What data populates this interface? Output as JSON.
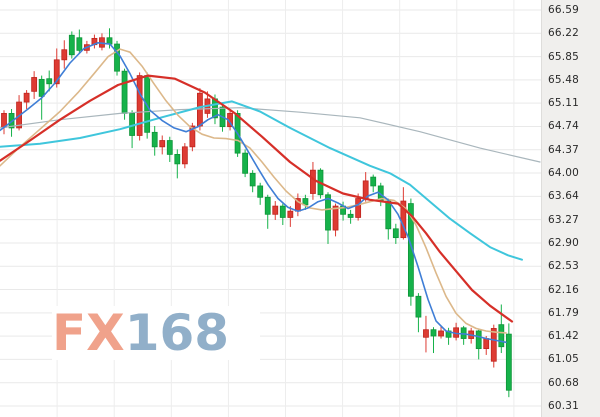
{
  "watermark": {
    "fx": "FX",
    "suffix": "168",
    "fx_color": "#F0A28B",
    "suffix_color": "#91AFC9"
  },
  "chart_data": {
    "type": "candlestick",
    "title": "",
    "legend": [],
    "grid": true,
    "y_axis": {
      "side": "right",
      "max": 66.59,
      "min": 60.31,
      "labels": [
        "66.59",
        "66.22",
        "65.85",
        "65.48",
        "65.11",
        "64.74",
        "64.37",
        "64.00",
        "63.64",
        "63.27",
        "62.90",
        "62.53",
        "62.16",
        "61.79",
        "61.42",
        "61.05",
        "60.68",
        "60.31"
      ]
    },
    "colors": {
      "up": "#DD3B33",
      "up_border": "#BE251E",
      "down": "#16B24A",
      "down_border": "#0D9438",
      "grid": "#E9E9E9",
      "vgrid": "#EDEDED",
      "axis_text": "#2A2A2A",
      "axis_bg": "#F0EFED",
      "background": "#FFFFFF"
    },
    "candles": [
      [
        64.73,
        65.0,
        64.62,
        64.95
      ],
      [
        64.95,
        65.02,
        64.58,
        64.72
      ],
      [
        64.72,
        65.24,
        64.68,
        65.13
      ],
      [
        65.13,
        65.32,
        65.02,
        65.27
      ],
      [
        65.3,
        65.62,
        65.18,
        65.52
      ],
      [
        65.49,
        65.55,
        64.85,
        65.22
      ],
      [
        65.5,
        65.63,
        65.3,
        65.42
      ],
      [
        65.42,
        65.98,
        65.36,
        65.8
      ],
      [
        65.8,
        66.11,
        65.66,
        65.96
      ],
      [
        66.19,
        66.25,
        65.82,
        65.88
      ],
      [
        66.15,
        66.28,
        65.9,
        65.95
      ],
      [
        65.95,
        66.1,
        65.9,
        66.04
      ],
      [
        66.04,
        66.2,
        65.98,
        66.14
      ],
      [
        66.0,
        66.22,
        65.95,
        66.15
      ],
      [
        66.15,
        66.3,
        65.98,
        66.05
      ],
      [
        66.05,
        66.1,
        65.55,
        65.62
      ],
      [
        65.62,
        65.66,
        64.85,
        64.95
      ],
      [
        64.95,
        65.0,
        64.4,
        64.6
      ],
      [
        64.6,
        65.6,
        64.52,
        65.55
      ],
      [
        65.55,
        65.6,
        64.55,
        64.65
      ],
      [
        64.65,
        64.75,
        64.28,
        64.42
      ],
      [
        64.42,
        64.6,
        64.3,
        64.52
      ],
      [
        64.52,
        64.58,
        64.18,
        64.3
      ],
      [
        64.3,
        64.38,
        63.92,
        64.15
      ],
      [
        64.15,
        64.48,
        64.08,
        64.42
      ],
      [
        64.42,
        64.8,
        64.35,
        64.75
      ],
      [
        64.75,
        65.35,
        64.68,
        65.27
      ],
      [
        64.95,
        65.3,
        64.88,
        65.18
      ],
      [
        65.18,
        65.25,
        64.78,
        64.88
      ],
      [
        65.05,
        65.1,
        64.66,
        64.74
      ],
      [
        64.74,
        65.0,
        64.68,
        64.95
      ],
      [
        64.95,
        65.0,
        64.26,
        64.32
      ],
      [
        64.32,
        64.38,
        63.94,
        64.0
      ],
      [
        64.0,
        64.05,
        63.7,
        63.8
      ],
      [
        63.8,
        63.85,
        63.5,
        63.62
      ],
      [
        63.62,
        63.66,
        63.12,
        63.35
      ],
      [
        63.35,
        63.56,
        63.26,
        63.48
      ],
      [
        63.48,
        63.52,
        63.18,
        63.3
      ],
      [
        63.3,
        63.48,
        63.15,
        63.4
      ],
      [
        63.4,
        63.68,
        63.32,
        63.6
      ],
      [
        63.6,
        63.66,
        63.42,
        63.5
      ],
      [
        63.68,
        64.18,
        63.58,
        64.05
      ],
      [
        64.05,
        64.08,
        63.6,
        63.66
      ],
      [
        63.66,
        63.7,
        62.88,
        63.1
      ],
      [
        63.1,
        63.52,
        63.0,
        63.48
      ],
      [
        63.48,
        63.55,
        63.25,
        63.35
      ],
      [
        63.35,
        63.42,
        63.2,
        63.3
      ],
      [
        63.3,
        63.68,
        63.25,
        63.6
      ],
      [
        63.6,
        64.02,
        63.55,
        63.88
      ],
      [
        63.94,
        63.98,
        63.7,
        63.8
      ],
      [
        63.8,
        63.85,
        63.48,
        63.56
      ],
      [
        63.56,
        63.6,
        62.95,
        63.12
      ],
      [
        63.12,
        63.2,
        62.88,
        62.98
      ],
      [
        62.98,
        63.78,
        62.95,
        63.56
      ],
      [
        63.52,
        63.6,
        61.9,
        62.05
      ],
      [
        62.05,
        62.1,
        61.48,
        61.72
      ],
      [
        61.4,
        61.74,
        61.16,
        61.52
      ],
      [
        61.52,
        61.56,
        61.15,
        61.42
      ],
      [
        61.42,
        61.58,
        61.38,
        61.5
      ],
      [
        61.5,
        61.55,
        61.28,
        61.4
      ],
      [
        61.4,
        61.63,
        61.35,
        61.55
      ],
      [
        61.55,
        61.58,
        61.28,
        61.38
      ],
      [
        61.38,
        61.55,
        61.3,
        61.5
      ],
      [
        61.5,
        61.52,
        61.05,
        61.22
      ],
      [
        61.22,
        61.42,
        61.12,
        61.38
      ],
      [
        61.02,
        61.6,
        60.92,
        61.54
      ],
      [
        61.6,
        61.92,
        61.15,
        61.25
      ],
      [
        61.45,
        61.62,
        60.45,
        60.56
      ]
    ],
    "moving_averages": [
      {
        "name": "ma-gray",
        "color": "#A9B6BC",
        "width": 1.2,
        "points": [
          [
            0,
            64.72
          ],
          [
            60,
            64.85
          ],
          [
            120,
            64.95
          ],
          [
            180,
            65.01
          ],
          [
            240,
            65.04
          ],
          [
            300,
            64.97
          ],
          [
            360,
            64.88
          ],
          [
            420,
            64.66
          ],
          [
            480,
            64.4
          ],
          [
            540,
            64.18
          ]
        ]
      },
      {
        "name": "ma-cyan",
        "color": "#3FC6DC",
        "width": 2,
        "points": [
          [
            0,
            64.42
          ],
          [
            40,
            64.47
          ],
          [
            80,
            64.56
          ],
          [
            120,
            64.7
          ],
          [
            160,
            64.88
          ],
          [
            200,
            65.05
          ],
          [
            232,
            65.14
          ],
          [
            260,
            64.98
          ],
          [
            290,
            64.72
          ],
          [
            310,
            64.56
          ],
          [
            330,
            64.4
          ],
          [
            350,
            64.26
          ],
          [
            370,
            64.12
          ],
          [
            390,
            64.0
          ],
          [
            410,
            63.82
          ],
          [
            430,
            63.55
          ],
          [
            450,
            63.28
          ],
          [
            470,
            63.05
          ],
          [
            490,
            62.83
          ],
          [
            508,
            62.7
          ],
          [
            522,
            62.63
          ]
        ]
      },
      {
        "name": "ma-tan",
        "color": "#DCB88A",
        "width": 1.6,
        "points": [
          [
            0,
            64.12
          ],
          [
            20,
            64.42
          ],
          [
            40,
            64.7
          ],
          [
            60,
            64.98
          ],
          [
            78,
            65.28
          ],
          [
            94,
            65.58
          ],
          [
            108,
            65.85
          ],
          [
            120,
            65.97
          ],
          [
            130,
            65.92
          ],
          [
            142,
            65.7
          ],
          [
            154,
            65.42
          ],
          [
            166,
            65.15
          ],
          [
            178,
            64.92
          ],
          [
            190,
            64.74
          ],
          [
            202,
            64.62
          ],
          [
            214,
            64.56
          ],
          [
            226,
            64.55
          ],
          [
            238,
            64.52
          ],
          [
            250,
            64.4
          ],
          [
            262,
            64.18
          ],
          [
            274,
            63.94
          ],
          [
            286,
            63.72
          ],
          [
            298,
            63.55
          ],
          [
            310,
            63.45
          ],
          [
            322,
            63.42
          ],
          [
            334,
            63.44
          ],
          [
            346,
            63.46
          ],
          [
            358,
            63.5
          ],
          [
            370,
            63.55
          ],
          [
            382,
            63.6
          ],
          [
            394,
            63.57
          ],
          [
            406,
            63.44
          ],
          [
            416,
            63.18
          ],
          [
            426,
            62.82
          ],
          [
            436,
            62.42
          ],
          [
            446,
            62.05
          ],
          [
            456,
            61.78
          ],
          [
            466,
            61.62
          ],
          [
            476,
            61.54
          ],
          [
            486,
            61.5
          ],
          [
            496,
            61.48
          ],
          [
            506,
            61.47
          ]
        ]
      },
      {
        "name": "ma-blue",
        "color": "#3F7ED6",
        "width": 1.6,
        "points": [
          [
            0,
            64.68
          ],
          [
            14,
            64.85
          ],
          [
            28,
            65.02
          ],
          [
            42,
            65.2
          ],
          [
            56,
            65.45
          ],
          [
            70,
            65.75
          ],
          [
            84,
            65.98
          ],
          [
            98,
            66.07
          ],
          [
            110,
            66.05
          ],
          [
            120,
            65.86
          ],
          [
            130,
            65.58
          ],
          [
            140,
            65.26
          ],
          [
            150,
            65.0
          ],
          [
            162,
            64.84
          ],
          [
            174,
            64.72
          ],
          [
            186,
            64.66
          ],
          [
            198,
            64.74
          ],
          [
            208,
            64.85
          ],
          [
            218,
            64.93
          ],
          [
            228,
            64.85
          ],
          [
            238,
            64.62
          ],
          [
            248,
            64.35
          ],
          [
            258,
            64.08
          ],
          [
            268,
            63.82
          ],
          [
            278,
            63.6
          ],
          [
            288,
            63.46
          ],
          [
            298,
            63.4
          ],
          [
            308,
            63.45
          ],
          [
            318,
            63.55
          ],
          [
            328,
            63.6
          ],
          [
            338,
            63.53
          ],
          [
            348,
            63.44
          ],
          [
            358,
            63.5
          ],
          [
            368,
            63.64
          ],
          [
            378,
            63.7
          ],
          [
            388,
            63.58
          ],
          [
            398,
            63.35
          ],
          [
            408,
            63.0
          ],
          [
            418,
            62.52
          ],
          [
            428,
            62.0
          ],
          [
            436,
            61.66
          ],
          [
            446,
            61.5
          ],
          [
            456,
            61.46
          ],
          [
            466,
            61.45
          ],
          [
            476,
            61.42
          ],
          [
            486,
            61.38
          ],
          [
            496,
            61.35
          ],
          [
            506,
            61.32
          ]
        ]
      },
      {
        "name": "ma-red",
        "color": "#D62F28",
        "width": 2.2,
        "points": [
          [
            0,
            64.2
          ],
          [
            30,
            64.52
          ],
          [
            60,
            64.85
          ],
          [
            90,
            65.15
          ],
          [
            118,
            65.4
          ],
          [
            148,
            65.55
          ],
          [
            175,
            65.5
          ],
          [
            205,
            65.28
          ],
          [
            235,
            64.95
          ],
          [
            262,
            64.58
          ],
          [
            290,
            64.18
          ],
          [
            316,
            63.88
          ],
          [
            343,
            63.68
          ],
          [
            370,
            63.58
          ],
          [
            398,
            63.52
          ],
          [
            412,
            63.32
          ],
          [
            426,
            63.05
          ],
          [
            440,
            62.75
          ],
          [
            456,
            62.45
          ],
          [
            472,
            62.15
          ],
          [
            490,
            61.9
          ],
          [
            512,
            61.65
          ]
        ]
      }
    ]
  }
}
